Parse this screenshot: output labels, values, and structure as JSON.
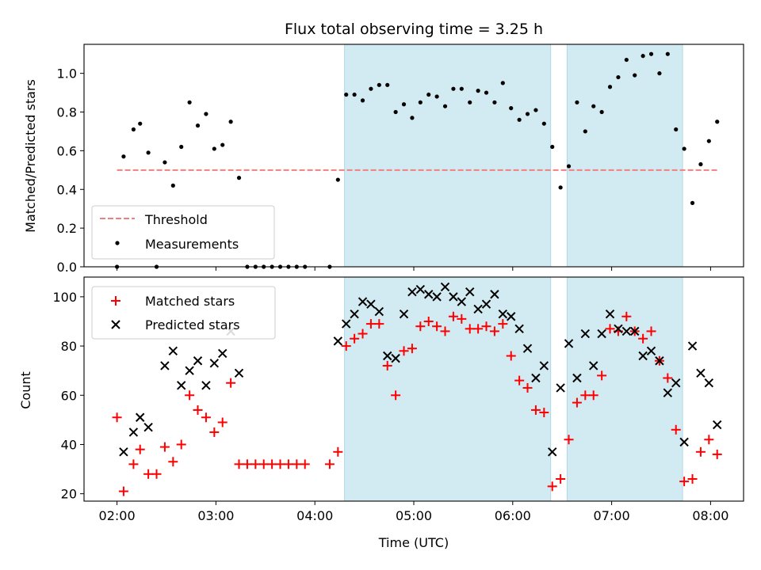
{
  "chart_data": [
    {
      "type": "scatter",
      "title": "Flux total observing time = 3.25 h",
      "xlabel": "",
      "ylabel": "Matched/Predicted stars",
      "xlim": [
        "01:40",
        "08:20"
      ],
      "ylim": [
        0,
        1.15
      ],
      "xticks": [
        "02:00",
        "03:00",
        "04:00",
        "05:00",
        "06:00",
        "07:00",
        "08:00"
      ],
      "yticks": [
        "0.0",
        "0.2",
        "0.4",
        "0.6",
        "0.8",
        "1.0"
      ],
      "shaded_spans": [
        [
          "04:18",
          "06:23"
        ],
        [
          "06:33",
          "07:43"
        ]
      ],
      "legend_location": "lower-left",
      "series": [
        {
          "name": "Threshold",
          "style": "dashed-line",
          "color": "#f08080",
          "points": [
            [
              "02:00",
              0.5
            ],
            [
              "08:05",
              0.5
            ]
          ]
        },
        {
          "name": "Measurements",
          "style": "dot",
          "color": "#000000",
          "points": [
            [
              "02:00",
              0.0
            ],
            [
              "02:04",
              0.57
            ],
            [
              "02:10",
              0.71
            ],
            [
              "02:14",
              0.74
            ],
            [
              "02:19",
              0.59
            ],
            [
              "02:24",
              0.0
            ],
            [
              "02:29",
              0.54
            ],
            [
              "02:34",
              0.42
            ],
            [
              "02:39",
              0.62
            ],
            [
              "02:44",
              0.85
            ],
            [
              "02:49",
              0.73
            ],
            [
              "02:54",
              0.79
            ],
            [
              "02:59",
              0.61
            ],
            [
              "03:04",
              0.63
            ],
            [
              "03:09",
              0.75
            ],
            [
              "03:14",
              0.46
            ],
            [
              "03:19",
              0.0
            ],
            [
              "03:24",
              0.0
            ],
            [
              "03:29",
              0.0
            ],
            [
              "03:34",
              0.0
            ],
            [
              "03:39",
              0.0
            ],
            [
              "03:44",
              0.0
            ],
            [
              "03:49",
              0.0
            ],
            [
              "03:54",
              0.0
            ],
            [
              "04:09",
              0.0
            ],
            [
              "04:14",
              0.45
            ],
            [
              "04:19",
              0.89
            ],
            [
              "04:24",
              0.89
            ],
            [
              "04:29",
              0.86
            ],
            [
              "04:34",
              0.92
            ],
            [
              "04:39",
              0.94
            ],
            [
              "04:44",
              0.94
            ],
            [
              "04:49",
              0.8
            ],
            [
              "04:54",
              0.84
            ],
            [
              "04:59",
              0.77
            ],
            [
              "05:04",
              0.85
            ],
            [
              "05:09",
              0.89
            ],
            [
              "05:14",
              0.88
            ],
            [
              "05:19",
              0.83
            ],
            [
              "05:24",
              0.92
            ],
            [
              "05:29",
              0.92
            ],
            [
              "05:34",
              0.85
            ],
            [
              "05:39",
              0.91
            ],
            [
              "05:44",
              0.9
            ],
            [
              "05:49",
              0.85
            ],
            [
              "05:54",
              0.95
            ],
            [
              "05:59",
              0.82
            ],
            [
              "06:04",
              0.76
            ],
            [
              "06:09",
              0.79
            ],
            [
              "06:14",
              0.81
            ],
            [
              "06:19",
              0.74
            ],
            [
              "06:24",
              0.62
            ],
            [
              "06:29",
              0.41
            ],
            [
              "06:34",
              0.52
            ],
            [
              "06:39",
              0.85
            ],
            [
              "06:44",
              0.7
            ],
            [
              "06:49",
              0.83
            ],
            [
              "06:54",
              0.8
            ],
            [
              "06:59",
              0.93
            ],
            [
              "07:04",
              0.98
            ],
            [
              "07:09",
              1.07
            ],
            [
              "07:14",
              0.99
            ],
            [
              "07:19",
              1.09
            ],
            [
              "07:24",
              1.1
            ],
            [
              "07:29",
              1.0
            ],
            [
              "07:34",
              1.1
            ],
            [
              "07:39",
              0.71
            ],
            [
              "07:44",
              0.61
            ],
            [
              "07:49",
              0.33
            ],
            [
              "07:54",
              0.53
            ],
            [
              "07:59",
              0.65
            ],
            [
              "08:04",
              0.75
            ]
          ]
        }
      ]
    },
    {
      "type": "scatter",
      "title": "",
      "xlabel": "Time (UTC)",
      "ylabel": "Count",
      "xlim": [
        "01:40",
        "08:20"
      ],
      "ylim": [
        17,
        108
      ],
      "xticks": [
        "02:00",
        "03:00",
        "04:00",
        "05:00",
        "06:00",
        "07:00",
        "08:00"
      ],
      "yticks": [
        "20",
        "40",
        "60",
        "80",
        "100"
      ],
      "shaded_spans": [
        [
          "04:18",
          "06:23"
        ],
        [
          "06:33",
          "07:43"
        ]
      ],
      "legend_location": "upper-left",
      "series": [
        {
          "name": "Matched stars",
          "style": "plus",
          "color": "#ff0000",
          "points": [
            [
              "02:00",
              51
            ],
            [
              "02:04",
              21
            ],
            [
              "02:10",
              32
            ],
            [
              "02:14",
              38
            ],
            [
              "02:19",
              28
            ],
            [
              "02:24",
              28
            ],
            [
              "02:29",
              39
            ],
            [
              "02:34",
              33
            ],
            [
              "02:39",
              40
            ],
            [
              "02:44",
              60
            ],
            [
              "02:49",
              54
            ],
            [
              "02:54",
              51
            ],
            [
              "02:59",
              45
            ],
            [
              "03:04",
              49
            ],
            [
              "03:09",
              65
            ],
            [
              "03:14",
              32
            ],
            [
              "03:19",
              32
            ],
            [
              "03:24",
              32
            ],
            [
              "03:29",
              32
            ],
            [
              "03:34",
              32
            ],
            [
              "03:39",
              32
            ],
            [
              "03:44",
              32
            ],
            [
              "03:49",
              32
            ],
            [
              "03:54",
              32
            ],
            [
              "04:09",
              32
            ],
            [
              "04:14",
              37
            ],
            [
              "04:19",
              80
            ],
            [
              "04:24",
              83
            ],
            [
              "04:29",
              85
            ],
            [
              "04:34",
              89
            ],
            [
              "04:39",
              89
            ],
            [
              "04:44",
              72
            ],
            [
              "04:49",
              60
            ],
            [
              "04:54",
              78
            ],
            [
              "04:59",
              79
            ],
            [
              "05:04",
              88
            ],
            [
              "05:09",
              90
            ],
            [
              "05:14",
              88
            ],
            [
              "05:19",
              86
            ],
            [
              "05:24",
              92
            ],
            [
              "05:29",
              91
            ],
            [
              "05:34",
              87
            ],
            [
              "05:39",
              87
            ],
            [
              "05:44",
              88
            ],
            [
              "05:49",
              86
            ],
            [
              "05:54",
              89
            ],
            [
              "05:59",
              76
            ],
            [
              "06:04",
              66
            ],
            [
              "06:09",
              63
            ],
            [
              "06:14",
              54
            ],
            [
              "06:19",
              53
            ],
            [
              "06:24",
              23
            ],
            [
              "06:29",
              26
            ],
            [
              "06:34",
              42
            ],
            [
              "06:39",
              57
            ],
            [
              "06:44",
              60
            ],
            [
              "06:49",
              60
            ],
            [
              "06:54",
              68
            ],
            [
              "06:59",
              87
            ],
            [
              "07:04",
              86
            ],
            [
              "07:09",
              92
            ],
            [
              "07:14",
              86
            ],
            [
              "07:19",
              83
            ],
            [
              "07:24",
              86
            ],
            [
              "07:29",
              74
            ],
            [
              "07:34",
              67
            ],
            [
              "07:39",
              46
            ],
            [
              "07:44",
              25
            ],
            [
              "07:49",
              26
            ],
            [
              "07:54",
              37
            ],
            [
              "07:59",
              42
            ],
            [
              "08:04",
              36
            ]
          ]
        },
        {
          "name": "Predicted stars",
          "style": "x",
          "color": "#000000",
          "points": [
            [
              "02:04",
              37
            ],
            [
              "02:10",
              45
            ],
            [
              "02:14",
              51
            ],
            [
              "02:19",
              47
            ],
            [
              "02:29",
              72
            ],
            [
              "02:34",
              78
            ],
            [
              "02:39",
              64
            ],
            [
              "02:44",
              70
            ],
            [
              "02:49",
              74
            ],
            [
              "02:54",
              64
            ],
            [
              "02:59",
              73
            ],
            [
              "03:04",
              77
            ],
            [
              "03:09",
              86
            ],
            [
              "03:14",
              69
            ],
            [
              "04:14",
              82
            ],
            [
              "04:19",
              89
            ],
            [
              "04:24",
              93
            ],
            [
              "04:29",
              98
            ],
            [
              "04:34",
              97
            ],
            [
              "04:39",
              94
            ],
            [
              "04:44",
              76
            ],
            [
              "04:49",
              75
            ],
            [
              "04:54",
              93
            ],
            [
              "04:59",
              102
            ],
            [
              "05:04",
              103
            ],
            [
              "05:09",
              101
            ],
            [
              "05:14",
              100
            ],
            [
              "05:19",
              104
            ],
            [
              "05:24",
              100
            ],
            [
              "05:29",
              98
            ],
            [
              "05:34",
              102
            ],
            [
              "05:39",
              95
            ],
            [
              "05:44",
              97
            ],
            [
              "05:49",
              101
            ],
            [
              "05:54",
              93
            ],
            [
              "05:59",
              92
            ],
            [
              "06:04",
              87
            ],
            [
              "06:09",
              79
            ],
            [
              "06:14",
              67
            ],
            [
              "06:19",
              72
            ],
            [
              "06:24",
              37
            ],
            [
              "06:29",
              63
            ],
            [
              "06:34",
              81
            ],
            [
              "06:39",
              67
            ],
            [
              "06:44",
              85
            ],
            [
              "06:49",
              72
            ],
            [
              "06:54",
              85
            ],
            [
              "06:59",
              93
            ],
            [
              "07:04",
              87
            ],
            [
              "07:09",
              86
            ],
            [
              "07:14",
              86
            ],
            [
              "07:19",
              76
            ],
            [
              "07:24",
              78
            ],
            [
              "07:29",
              74
            ],
            [
              "07:34",
              61
            ],
            [
              "07:39",
              65
            ],
            [
              "07:44",
              41
            ],
            [
              "07:49",
              80
            ],
            [
              "07:54",
              69
            ],
            [
              "07:59",
              65
            ],
            [
              "08:04",
              48
            ]
          ]
        }
      ]
    }
  ],
  "colors": {
    "shade": "#add8e6",
    "threshold": "#f08080",
    "matched": "#ff0000",
    "predicted": "#000000",
    "measurements": "#000000"
  }
}
